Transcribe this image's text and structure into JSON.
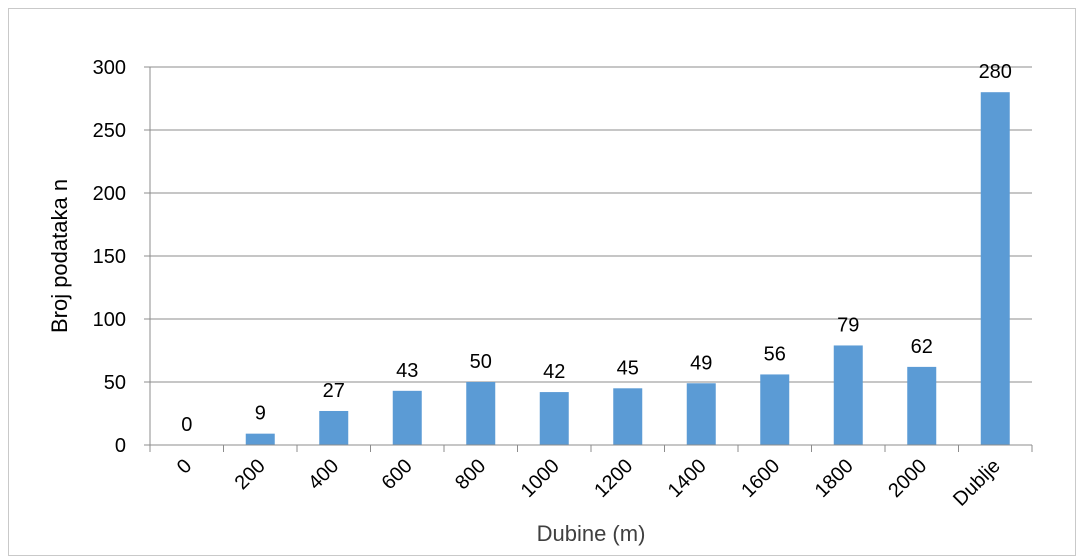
{
  "chart_data": {
    "type": "bar",
    "title": "",
    "xlabel": "Dubine (m)",
    "ylabel": "Broj podataka n",
    "categories": [
      "0",
      "200",
      "400",
      "600",
      "800",
      "1000",
      "1200",
      "1400",
      "1600",
      "1800",
      "2000",
      "Dublje"
    ],
    "values": [
      0,
      9,
      27,
      43,
      50,
      42,
      45,
      49,
      56,
      79,
      62,
      280
    ],
    "data_labels": [
      "0",
      "9",
      "27",
      "43",
      "50",
      "42",
      "45",
      "49",
      "56",
      "79",
      "62",
      "280"
    ],
    "ylim": [
      0,
      300
    ],
    "yticks": [
      0,
      50,
      100,
      150,
      200,
      250,
      300
    ],
    "grid": true,
    "legend": "none",
    "bar_color": "#5b9bd5",
    "grid_color": "#8c8c8c",
    "axis_color": "#8c8c8c"
  }
}
